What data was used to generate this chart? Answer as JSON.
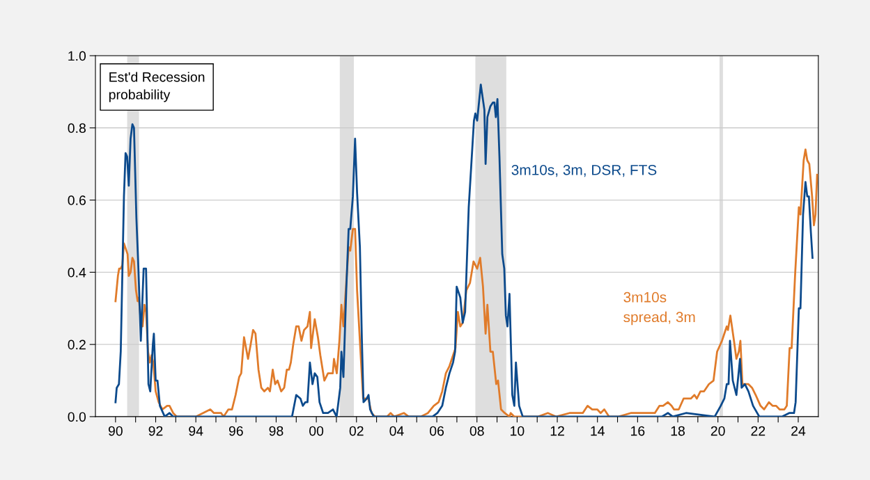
{
  "chart_data": {
    "type": "line",
    "title": "Est'd Recession\nprobability",
    "xlim": [
      1989.0,
      2025.0
    ],
    "ylim": [
      0.0,
      1.0
    ],
    "xticks": [
      {
        "value": 1990,
        "label": "90"
      },
      {
        "value": 1991,
        "label": null
      },
      {
        "value": 1992,
        "label": "92"
      },
      {
        "value": 1993,
        "label": null
      },
      {
        "value": 1994,
        "label": "94"
      },
      {
        "value": 1995,
        "label": null
      },
      {
        "value": 1996,
        "label": "96"
      },
      {
        "value": 1997,
        "label": null
      },
      {
        "value": 1998,
        "label": "98"
      },
      {
        "value": 1999,
        "label": null
      },
      {
        "value": 2000,
        "label": "00"
      },
      {
        "value": 2001,
        "label": null
      },
      {
        "value": 2002,
        "label": "02"
      },
      {
        "value": 2003,
        "label": null
      },
      {
        "value": 2004,
        "label": "04"
      },
      {
        "value": 2005,
        "label": null
      },
      {
        "value": 2006,
        "label": "06"
      },
      {
        "value": 2007,
        "label": null
      },
      {
        "value": 2008,
        "label": "08"
      },
      {
        "value": 2009,
        "label": null
      },
      {
        "value": 2010,
        "label": "10"
      },
      {
        "value": 2011,
        "label": null
      },
      {
        "value": 2012,
        "label": "12"
      },
      {
        "value": 2013,
        "label": null
      },
      {
        "value": 2014,
        "label": "14"
      },
      {
        "value": 2015,
        "label": null
      },
      {
        "value": 2016,
        "label": "16"
      },
      {
        "value": 2017,
        "label": null
      },
      {
        "value": 2018,
        "label": "18"
      },
      {
        "value": 2019,
        "label": null
      },
      {
        "value": 2020,
        "label": "20"
      },
      {
        "value": 2021,
        "label": null
      },
      {
        "value": 2022,
        "label": "22"
      },
      {
        "value": 2023,
        "label": null
      },
      {
        "value": 2024,
        "label": "24"
      }
    ],
    "yticks": [
      {
        "value": 0,
        "label": "0.0"
      },
      0.2,
      0.4,
      0.6,
      0.8,
      {
        "value": 1,
        "label": "1.0"
      }
    ],
    "grid": "y",
    "legend": false,
    "marker": "none",
    "line_style": "solid",
    "bands": [
      {
        "axis": "x",
        "from": 1990.58,
        "to": 1991.17,
        "color": "#dedede"
      },
      {
        "axis": "x",
        "from": 2001.17,
        "to": 2001.87,
        "color": "#dedede"
      },
      {
        "axis": "x",
        "from": 2007.92,
        "to": 2009.46,
        "color": "#dedede"
      },
      {
        "axis": "x",
        "from": 2020.08,
        "to": 2020.25,
        "color": "#dedede"
      }
    ],
    "series": [
      {
        "name": "3m10s, 3m, DSR, FTS",
        "color": "#0c4a8c",
        "x": [
          1990.0,
          1990.06,
          1990.17,
          1990.26,
          1990.42,
          1990.5,
          1990.58,
          1990.66,
          1990.75,
          1990.84,
          1990.92,
          1991.04,
          1991.14,
          1991.26,
          1991.4,
          1991.52,
          1991.64,
          1991.73,
          1991.86,
          1991.91,
          1992.0,
          1992.09,
          1992.21,
          1992.45,
          1992.69,
          1992.87,
          1998.79,
          1999.0,
          1999.21,
          1999.33,
          1999.45,
          1999.56,
          1999.68,
          1999.81,
          1999.92,
          2000.05,
          2000.16,
          2000.34,
          2000.58,
          2000.83,
          2001.01,
          2001.19,
          2001.25,
          2001.35,
          2001.49,
          2001.61,
          2001.69,
          2001.82,
          2001.93,
          2002.03,
          2002.17,
          2002.27,
          2002.35,
          2002.51,
          2002.6,
          2002.68,
          2002.86,
          2005.79,
          2006.03,
          2006.27,
          2006.45,
          2006.63,
          2006.81,
          2006.91,
          2006.99,
          2007.17,
          2007.29,
          2007.41,
          2007.59,
          2007.71,
          2007.85,
          2007.92,
          2008.01,
          2008.19,
          2008.37,
          2008.43,
          2008.52,
          2008.67,
          2008.79,
          2008.87,
          2008.94,
          2009.02,
          2009.12,
          2009.26,
          2009.36,
          2009.44,
          2009.52,
          2009.62,
          2009.76,
          2009.86,
          2009.94,
          2010.1,
          2010.28,
          2017.21,
          2017.51,
          2017.75,
          2018.41,
          2019.84,
          2020.14,
          2020.32,
          2020.44,
          2020.53,
          2020.6,
          2020.74,
          2020.92,
          2021.1,
          2021.18,
          2021.34,
          2021.52,
          2021.75,
          2022.06,
          2023.19,
          2023.55,
          2023.79,
          2023.87,
          2024.03,
          2024.11,
          2024.24,
          2024.36,
          2024.45,
          2024.53,
          2024.63,
          2024.71
        ],
        "values": [
          0.04,
          0.08,
          0.09,
          0.18,
          0.61,
          0.73,
          0.72,
          0.64,
          0.77,
          0.81,
          0.8,
          0.55,
          0.41,
          0.21,
          0.41,
          0.41,
          0.09,
          0.07,
          0.2,
          0.23,
          0.1,
          0.1,
          0.03,
          0.0,
          0.01,
          0.0,
          0.0,
          0.06,
          0.05,
          0.03,
          0.04,
          0.04,
          0.15,
          0.09,
          0.12,
          0.11,
          0.04,
          0.01,
          0.01,
          0.02,
          0.0,
          0.08,
          0.18,
          0.11,
          0.35,
          0.52,
          0.52,
          0.61,
          0.77,
          0.62,
          0.47,
          0.21,
          0.04,
          0.05,
          0.06,
          0.02,
          0.0,
          0.0,
          0.01,
          0.03,
          0.08,
          0.12,
          0.15,
          0.18,
          0.36,
          0.33,
          0.26,
          0.29,
          0.58,
          0.69,
          0.82,
          0.84,
          0.82,
          0.92,
          0.85,
          0.7,
          0.83,
          0.86,
          0.87,
          0.87,
          0.83,
          0.88,
          0.72,
          0.45,
          0.41,
          0.28,
          0.25,
          0.34,
          0.06,
          0.03,
          0.15,
          0.03,
          0.0,
          0.0,
          0.01,
          0.0,
          0.01,
          0.0,
          0.03,
          0.05,
          0.09,
          0.09,
          0.21,
          0.1,
          0.06,
          0.16,
          0.08,
          0.09,
          0.07,
          0.03,
          0.0,
          0.0,
          0.01,
          0.01,
          0.04,
          0.3,
          0.3,
          0.56,
          0.65,
          0.61,
          0.61,
          0.51,
          0.44
        ]
      },
      {
        "name": "3m10s\nspread, 3m",
        "color": "#e07b2a",
        "x": [
          1990.0,
          1990.12,
          1990.18,
          1990.26,
          1990.34,
          1990.42,
          1990.6,
          1990.66,
          1990.75,
          1990.84,
          1990.92,
          1991.02,
          1991.1,
          1991.16,
          1991.28,
          1991.35,
          1991.44,
          1991.52,
          1991.62,
          1991.71,
          1991.79,
          1991.88,
          1992.0,
          1992.15,
          1992.33,
          1992.57,
          1992.69,
          1992.87,
          1993.05,
          1994.0,
          1994.36,
          1994.72,
          1994.9,
          1995.26,
          1995.38,
          1995.62,
          1995.8,
          1995.98,
          1996.16,
          1996.26,
          1996.4,
          1996.6,
          1996.73,
          1996.85,
          1996.97,
          1997.12,
          1997.26,
          1997.41,
          1997.59,
          1997.69,
          1997.83,
          1997.95,
          1998.07,
          1998.25,
          1998.4,
          1998.53,
          1998.64,
          1998.73,
          1998.85,
          1999.0,
          1999.12,
          1999.26,
          1999.39,
          1999.56,
          1999.68,
          1999.74,
          1999.92,
          2000.08,
          2000.2,
          2000.4,
          2000.58,
          2000.82,
          2000.88,
          2001.02,
          2001.15,
          2001.25,
          2001.35,
          2001.49,
          2001.61,
          2001.69,
          2001.82,
          2001.93,
          2002.03,
          2002.17,
          2002.33,
          2002.45,
          2002.59,
          2002.75,
          2002.93,
          2003.52,
          2003.7,
          2003.88,
          2004.36,
          2004.6,
          2005.2,
          2005.56,
          2005.85,
          2006.09,
          2006.27,
          2006.45,
          2006.63,
          2006.81,
          2006.93,
          2007.05,
          2007.17,
          2007.29,
          2007.47,
          2007.65,
          2007.83,
          2008.01,
          2008.16,
          2008.3,
          2008.43,
          2008.52,
          2008.67,
          2008.79,
          2008.96,
          2009.05,
          2009.2,
          2009.38,
          2009.62,
          2009.68,
          2009.86,
          2011.05,
          2011.53,
          2011.95,
          2012.61,
          2012.73,
          2013.03,
          2013.27,
          2013.51,
          2013.74,
          2013.99,
          2014.16,
          2014.34,
          2014.58,
          2015.06,
          2015.66,
          2016.02,
          2016.38,
          2016.86,
          2017.09,
          2017.27,
          2017.51,
          2017.69,
          2017.81,
          2018.05,
          2018.29,
          2018.47,
          2018.65,
          2018.83,
          2018.95,
          2019.13,
          2019.31,
          2019.55,
          2019.78,
          2019.96,
          2020.2,
          2020.44,
          2020.5,
          2020.62,
          2020.8,
          2020.92,
          2021.04,
          2021.12,
          2021.22,
          2021.34,
          2021.52,
          2021.7,
          2021.88,
          2022.12,
          2022.3,
          2022.54,
          2022.72,
          2022.9,
          2023.07,
          2023.31,
          2023.43,
          2023.57,
          2023.67,
          2023.85,
          2024.03,
          2024.11,
          2024.27,
          2024.36,
          2024.45,
          2024.55,
          2024.69,
          2024.78,
          2024.86,
          2024.94
        ],
        "values": [
          0.32,
          0.39,
          0.41,
          0.41,
          0.42,
          0.48,
          0.45,
          0.39,
          0.4,
          0.44,
          0.43,
          0.35,
          0.32,
          0.33,
          0.25,
          0.25,
          0.31,
          0.29,
          0.18,
          0.15,
          0.17,
          0.15,
          0.07,
          0.04,
          0.02,
          0.03,
          0.03,
          0.01,
          0.0,
          0.0,
          0.01,
          0.02,
          0.01,
          0.01,
          0.0,
          0.02,
          0.02,
          0.06,
          0.11,
          0.12,
          0.22,
          0.16,
          0.2,
          0.24,
          0.23,
          0.13,
          0.08,
          0.07,
          0.08,
          0.07,
          0.13,
          0.09,
          0.1,
          0.07,
          0.08,
          0.13,
          0.13,
          0.15,
          0.2,
          0.25,
          0.25,
          0.21,
          0.24,
          0.25,
          0.29,
          0.19,
          0.27,
          0.22,
          0.17,
          0.1,
          0.12,
          0.12,
          0.16,
          0.12,
          0.21,
          0.31,
          0.25,
          0.37,
          0.47,
          0.46,
          0.52,
          0.52,
          0.35,
          0.21,
          0.05,
          0.05,
          0.05,
          0.01,
          0.0,
          0.0,
          0.01,
          0.0,
          0.01,
          0.0,
          0.0,
          0.01,
          0.03,
          0.04,
          0.07,
          0.12,
          0.14,
          0.17,
          0.19,
          0.29,
          0.25,
          0.26,
          0.35,
          0.37,
          0.43,
          0.41,
          0.44,
          0.36,
          0.23,
          0.31,
          0.18,
          0.18,
          0.09,
          0.1,
          0.02,
          0.01,
          0.0,
          0.01,
          0.0,
          0.0,
          0.01,
          0.0,
          0.01,
          0.01,
          0.01,
          0.01,
          0.03,
          0.02,
          0.02,
          0.01,
          0.02,
          0.0,
          0.0,
          0.01,
          0.01,
          0.01,
          0.01,
          0.03,
          0.03,
          0.04,
          0.03,
          0.02,
          0.02,
          0.05,
          0.05,
          0.05,
          0.06,
          0.05,
          0.07,
          0.07,
          0.09,
          0.1,
          0.18,
          0.21,
          0.25,
          0.24,
          0.28,
          0.21,
          0.16,
          0.18,
          0.21,
          0.09,
          0.09,
          0.09,
          0.08,
          0.06,
          0.03,
          0.02,
          0.04,
          0.03,
          0.03,
          0.02,
          0.02,
          0.03,
          0.19,
          0.19,
          0.4,
          0.58,
          0.56,
          0.71,
          0.74,
          0.71,
          0.7,
          0.61,
          0.53,
          0.56,
          0.67
        ]
      }
    ]
  }
}
